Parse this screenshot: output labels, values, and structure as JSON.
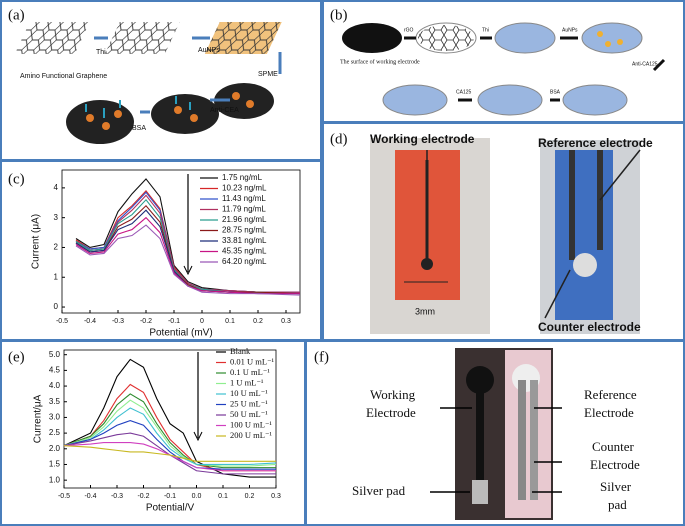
{
  "panels": {
    "a": {
      "label": "(a)",
      "texts": [
        "Amino Functional Graphene",
        "Thi",
        "AuNPs",
        "SPME",
        "Anti-CEA",
        "BSA"
      ]
    },
    "b": {
      "label": "(b)",
      "texts": [
        "The surface of working electrode",
        "rGO",
        "Thi",
        "AuNPs",
        "Anti-CA125",
        "BSA",
        "CA125"
      ]
    },
    "c": {
      "label": "(c)"
    },
    "d": {
      "label": "(d)",
      "texts": [
        "Working electrode",
        "Reference electrode",
        "Counter electrode",
        "3mm"
      ]
    },
    "e": {
      "label": "(e)"
    },
    "f": {
      "label": "(f)",
      "texts": [
        "Working",
        "Electrode",
        "Reference",
        "Electrode",
        "Counter",
        "Electrode",
        "Silver pad",
        "Silver",
        "pad"
      ]
    }
  },
  "chart_data": [
    {
      "type": "line",
      "xlabel": "Potential (mV)",
      "ylabel": "Current (μA)",
      "x": [
        -0.45,
        -0.4,
        -0.35,
        -0.3,
        -0.25,
        -0.2,
        -0.15,
        -0.1,
        -0.05,
        0,
        0.1,
        0.2,
        0.35
      ],
      "xlim": [
        -0.5,
        0.35
      ],
      "xticks": [
        -0.5,
        -0.4,
        -0.3,
        -0.2,
        -0.1,
        0,
        0.1,
        0.2,
        0.3
      ],
      "ylim": [
        -0.2,
        4.6
      ],
      "yticks": [
        0,
        1,
        2,
        3,
        4
      ],
      "series": [
        {
          "name": "1.75 ng/mL",
          "color": "#111111",
          "values": [
            2.3,
            2.0,
            2.1,
            3.2,
            3.8,
            4.3,
            3.7,
            1.4,
            0.85,
            0.65,
            0.55,
            0.5,
            0.5
          ]
        },
        {
          "name": "10.23 ng/mL",
          "color": "#d62728",
          "values": [
            2.25,
            1.95,
            2.0,
            3.0,
            3.4,
            3.9,
            3.3,
            1.35,
            0.8,
            0.6,
            0.55,
            0.5,
            0.5
          ]
        },
        {
          "name": "11.43 ng/mL",
          "color": "#3355cc",
          "values": [
            2.2,
            1.95,
            2.0,
            2.9,
            3.35,
            3.85,
            3.25,
            1.3,
            0.8,
            0.6,
            0.55,
            0.5,
            0.5
          ]
        },
        {
          "name": "11.79 ng/mL",
          "color": "#b03060",
          "values": [
            2.2,
            1.9,
            1.95,
            2.85,
            3.25,
            3.75,
            3.15,
            1.3,
            0.8,
            0.6,
            0.55,
            0.5,
            0.5
          ]
        },
        {
          "name": "21.96 ng/mL",
          "color": "#2a9d8f",
          "values": [
            2.2,
            1.9,
            1.95,
            2.8,
            3.1,
            3.6,
            3.0,
            1.25,
            0.75,
            0.6,
            0.5,
            0.5,
            0.45
          ]
        },
        {
          "name": "28.75 ng/mL",
          "color": "#8b1a1a",
          "values": [
            2.15,
            1.85,
            1.9,
            2.7,
            2.95,
            3.4,
            2.85,
            1.2,
            0.75,
            0.55,
            0.5,
            0.5,
            0.45
          ]
        },
        {
          "name": "33.81 ng/mL",
          "color": "#1f2f7a",
          "values": [
            2.15,
            1.85,
            1.9,
            2.6,
            2.8,
            3.25,
            2.7,
            1.2,
            0.7,
            0.55,
            0.5,
            0.45,
            0.45
          ]
        },
        {
          "name": "45.35 ng/mL",
          "color": "#c71585",
          "values": [
            2.1,
            1.8,
            1.85,
            2.45,
            2.6,
            3.0,
            2.5,
            1.15,
            0.7,
            0.55,
            0.5,
            0.45,
            0.45
          ]
        },
        {
          "name": "64.20 ng/mL",
          "color": "#9b59b6",
          "values": [
            2.05,
            1.75,
            1.8,
            2.3,
            2.4,
            2.75,
            2.3,
            1.1,
            0.7,
            0.5,
            0.45,
            0.45,
            0.4
          ]
        }
      ]
    },
    {
      "type": "line",
      "xlabel": "Potential/V",
      "ylabel": "Current/μA",
      "x": [
        -0.5,
        -0.4,
        -0.35,
        -0.3,
        -0.25,
        -0.2,
        -0.15,
        -0.1,
        -0.05,
        0,
        0.1,
        0.2,
        0.3
      ],
      "xlim": [
        -0.5,
        0.3
      ],
      "xticks": [
        -0.5,
        -0.4,
        -0.3,
        -0.2,
        -0.1,
        {
          "value": 0,
          "label": "0.0"
        },
        0.1,
        0.2,
        0.3
      ],
      "ylim": [
        0.75,
        5.15
      ],
      "yticks": [
        {
          "value": 1,
          "label": "1.0"
        },
        1.5,
        {
          "value": 2,
          "label": "2.0"
        },
        2.5,
        {
          "value": 3,
          "label": "3.0"
        },
        3.5,
        {
          "value": 4,
          "label": "4.0"
        },
        4.5,
        {
          "value": 5,
          "label": "5.0"
        }
      ],
      "series": [
        {
          "name": "Blank",
          "color": "#000000",
          "values": [
            2.1,
            2.5,
            3.3,
            4.3,
            4.85,
            4.6,
            3.6,
            2.8,
            2.5,
            1.6,
            1.2,
            1.1,
            1.1
          ]
        },
        {
          "name": "0.01 U mL⁻¹",
          "color": "#e03030",
          "values": [
            2.1,
            2.4,
            2.9,
            3.6,
            4.05,
            3.8,
            3.0,
            2.3,
            1.9,
            1.5,
            1.3,
            1.3,
            1.3
          ]
        },
        {
          "name": "0.1 U mL⁻¹",
          "color": "#2e8b2e",
          "values": [
            2.1,
            2.4,
            2.8,
            3.4,
            3.75,
            3.5,
            2.8,
            2.2,
            1.8,
            1.5,
            1.4,
            1.4,
            1.4
          ]
        },
        {
          "name": "1 U mL⁻¹",
          "color": "#90ee90",
          "values": [
            2.1,
            2.35,
            2.7,
            3.2,
            3.55,
            3.3,
            2.7,
            2.1,
            1.75,
            1.5,
            1.45,
            1.45,
            1.5
          ]
        },
        {
          "name": "10 U mL⁻¹",
          "color": "#40c0d0",
          "values": [
            2.1,
            2.3,
            2.6,
            3.0,
            3.3,
            3.1,
            2.5,
            2.0,
            1.7,
            1.5,
            1.5,
            1.5,
            1.55
          ]
        },
        {
          "name": "25 U mL⁻¹",
          "color": "#2040c0",
          "values": [
            2.1,
            2.3,
            2.5,
            2.75,
            2.9,
            2.75,
            2.3,
            1.9,
            1.6,
            1.4,
            1.35,
            1.35,
            1.35
          ]
        },
        {
          "name": "50 U mL⁻¹",
          "color": "#7a3a9a",
          "values": [
            2.1,
            2.25,
            2.35,
            2.45,
            2.5,
            2.4,
            2.1,
            1.8,
            1.55,
            1.3,
            1.2,
            1.2,
            1.2
          ]
        },
        {
          "name": "100 U mL⁻¹",
          "color": "#d040c0",
          "values": [
            2.1,
            2.15,
            2.2,
            2.2,
            2.2,
            2.15,
            2.0,
            1.8,
            1.6,
            1.4,
            1.3,
            1.3,
            1.3
          ]
        },
        {
          "name": "200 U mL⁻¹",
          "color": "#c8b820",
          "values": [
            2.1,
            2.05,
            2.0,
            1.95,
            1.9,
            1.9,
            1.85,
            1.8,
            1.7,
            1.6,
            1.6,
            1.6,
            1.6
          ]
        }
      ]
    }
  ]
}
